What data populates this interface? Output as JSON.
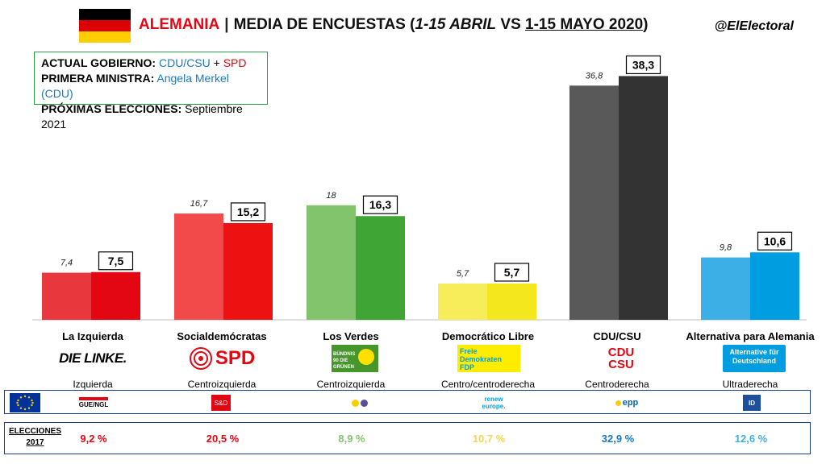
{
  "header": {
    "country": "ALEMANIA",
    "separator": "|",
    "subtitle_a": "MEDIA DE ENCUESTAS (",
    "period_a": "1-15 ABRIL",
    "subtitle_vs": " VS ",
    "period_b": "1-15 MAYO 2020",
    "subtitle_end": ")",
    "handle": "@ElElectoral"
  },
  "infobox": {
    "gov_label": "ACTUAL GOBIERNO:",
    "gov_party1": "CDU/CSU",
    "gov_plus": "+",
    "gov_party2": "SPD",
    "pm_label": "PRIMERA MINISTRA:",
    "pm_value": "Angela Merkel (CDU)",
    "elec_label": "PRÓXIMAS ELECCIONES:",
    "elec_value": "Septiembre 2021"
  },
  "colors": {
    "linke_prev": "#e8383d",
    "linke_cur": "#e30613",
    "spd_prev": "#f24a4a",
    "spd_cur": "#ee1111",
    "gruene_prev": "#82c46c",
    "gruene_cur": "#3fa535",
    "fdp_prev": "#f7ed5a",
    "fdp_cur": "#f5e71d",
    "cdu_prev": "#595959",
    "cdu_cur": "#333333",
    "afd_prev": "#3cb0e6",
    "afd_cur": "#009ee0"
  },
  "chart_data": {
    "type": "bar",
    "ylim": [
      0,
      40
    ],
    "categories": [
      "La Izquierda",
      "Socialdemócratas",
      "Los Verdes",
      "Democrático Libre",
      "CDU/CSU",
      "Alternativa para Alemania"
    ],
    "series": [
      {
        "values": [
          7.4,
          16.7,
          18,
          5.7,
          36.8,
          9.8
        ]
      },
      {
        "values": [
          7.5,
          15.2,
          16.3,
          5.7,
          38.3,
          10.6
        ]
      }
    ],
    "prev_labels": [
      "7,4",
      "16,7",
      "18",
      "5,7",
      "36,8",
      "9,8"
    ],
    "cur_labels": [
      "7,5",
      "15,2",
      "16,3",
      "5,7",
      "38,3",
      "10,6"
    ]
  },
  "parties": [
    {
      "name": "La Izquierda",
      "ideology": "Izquierda",
      "logo": "DIE LINKE.",
      "eu_group": "GUE/NGL",
      "elections_2017": "9,2 %",
      "color": "#e30613"
    },
    {
      "name": "Socialdemócratas",
      "ideology": "Centroizquierda",
      "logo": "SPD",
      "eu_group": "S&D",
      "elections_2017": "20,5 %",
      "color": "#e30613"
    },
    {
      "name": "Los Verdes",
      "ideology": "Centroizquierda",
      "logo": "BÜNDNIS 90 DIE GRÜNEN",
      "eu_group": "Greens/EFA",
      "elections_2017": "8,9 %",
      "color": "#82c46c"
    },
    {
      "name": "Democrático Libre",
      "ideology": "Centro/centroderecha",
      "logo": "Freie Demokraten FDP",
      "eu_group": "renew europe.",
      "elections_2017": "10,7 %",
      "color": "#f7d358"
    },
    {
      "name": "CDU/CSU",
      "ideology": "Centroderecha",
      "logo": "CDU CSU",
      "eu_group": "epp",
      "elections_2017": "32,9 %",
      "color": "#1b79c2"
    },
    {
      "name": "Alternativa para Alemania",
      "ideology": "Ultraderecha",
      "logo": "Alternative für Deutschland",
      "eu_group": "ID",
      "elections_2017": "12,6 %",
      "color": "#3cb0e6"
    }
  ],
  "elections_label_1": "ELECCIONES",
  "elections_label_2": "2017"
}
